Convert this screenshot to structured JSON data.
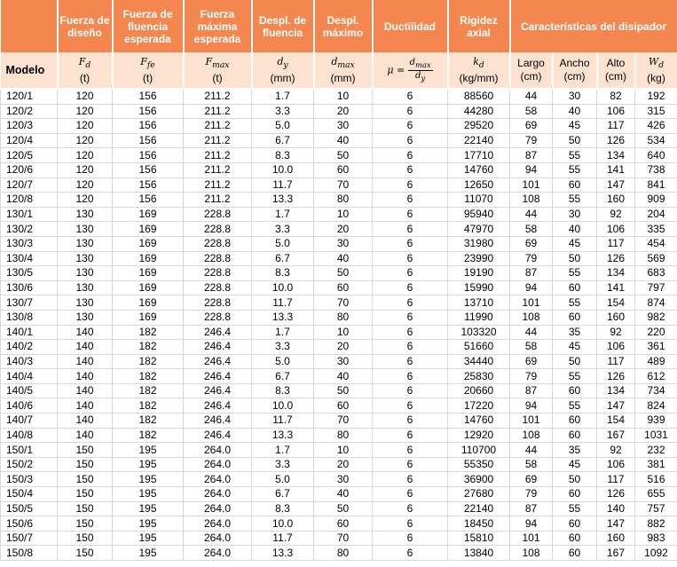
{
  "headers": {
    "fd": "Fuerza de diseño",
    "ffe": "Fuerza de fluencia esperada",
    "fmax": "Fuerza máxima esperada",
    "dy": "Despl. de fluencia",
    "dmax": "Despl. máximo",
    "ductilidad": "Ductilidad",
    "rigidez": "Rigidez axial",
    "caracteristicas": "Características del disipador"
  },
  "subheaders": {
    "modelo": "Modelo",
    "fd_sym": "F",
    "fd_sub": "d",
    "fd_unit": "(t)",
    "ffe_sym": "F",
    "ffe_sub": "fe",
    "ffe_unit": "(t)",
    "fmax_sym": "F",
    "fmax_sub": "max",
    "fmax_unit": "(t)",
    "dy_sym": "d",
    "dy_sub": "y",
    "dy_unit": "(mm)",
    "dmax_sym": "d",
    "dmax_sub": "max",
    "dmax_unit": "(mm)",
    "mu": "μ =",
    "mu_num": "d",
    "mu_num_sub": "max",
    "mu_den": "d",
    "mu_den_sub": "y",
    "kd_sym": "k",
    "kd_sub": "d",
    "kd_unit": "(kg/mm)",
    "largo": "Largo",
    "largo_unit": "(cm)",
    "ancho": "Ancho",
    "ancho_unit": "(cm)",
    "alto": "Alto",
    "alto_unit": "(cm)",
    "wd_sym": "W",
    "wd_sub": "d",
    "wd_unit": "(kg)"
  },
  "rows": [
    [
      "120/1",
      "120",
      "156",
      "211.2",
      "1.7",
      "10",
      "6",
      "88560",
      "44",
      "30",
      "82",
      "192"
    ],
    [
      "120/2",
      "120",
      "156",
      "211.2",
      "3.3",
      "20",
      "6",
      "44280",
      "58",
      "40",
      "106",
      "315"
    ],
    [
      "120/3",
      "120",
      "156",
      "211.2",
      "5.0",
      "30",
      "6",
      "29520",
      "69",
      "45",
      "117",
      "426"
    ],
    [
      "120/4",
      "120",
      "156",
      "211.2",
      "6.7",
      "40",
      "6",
      "22140",
      "79",
      "50",
      "126",
      "534"
    ],
    [
      "120/5",
      "120",
      "156",
      "211.2",
      "8.3",
      "50",
      "6",
      "17710",
      "87",
      "55",
      "134",
      "640"
    ],
    [
      "120/6",
      "120",
      "156",
      "211.2",
      "10.0",
      "60",
      "6",
      "14760",
      "94",
      "55",
      "141",
      "738"
    ],
    [
      "120/7",
      "120",
      "156",
      "211.2",
      "11.7",
      "70",
      "6",
      "12650",
      "101",
      "60",
      "147",
      "841"
    ],
    [
      "120/8",
      "120",
      "156",
      "211.2",
      "13.3",
      "80",
      "6",
      "11070",
      "108",
      "55",
      "160",
      "909"
    ],
    [
      "130/1",
      "130",
      "169",
      "228.8",
      "1.7",
      "10",
      "6",
      "95940",
      "44",
      "30",
      "92",
      "204"
    ],
    [
      "130/2",
      "130",
      "169",
      "228.8",
      "3.3",
      "20",
      "6",
      "47970",
      "58",
      "40",
      "106",
      "335"
    ],
    [
      "130/3",
      "130",
      "169",
      "228.8",
      "5.0",
      "30",
      "6",
      "31980",
      "69",
      "45",
      "117",
      "454"
    ],
    [
      "130/4",
      "130",
      "169",
      "228.8",
      "6.7",
      "40",
      "6",
      "23990",
      "79",
      "50",
      "126",
      "569"
    ],
    [
      "130/5",
      "130",
      "169",
      "228.8",
      "8.3",
      "50",
      "6",
      "19190",
      "87",
      "55",
      "134",
      "683"
    ],
    [
      "130/6",
      "130",
      "169",
      "228.8",
      "10.0",
      "60",
      "6",
      "15990",
      "94",
      "60",
      "141",
      "797"
    ],
    [
      "130/7",
      "130",
      "169",
      "228.8",
      "11.7",
      "70",
      "6",
      "13710",
      "101",
      "55",
      "154",
      "874"
    ],
    [
      "130/8",
      "130",
      "169",
      "228.8",
      "13.3",
      "80",
      "6",
      "11990",
      "108",
      "60",
      "160",
      "982"
    ],
    [
      "140/1",
      "140",
      "182",
      "246.4",
      "1.7",
      "10",
      "6",
      "103320",
      "44",
      "35",
      "92",
      "220"
    ],
    [
      "140/2",
      "140",
      "182",
      "246.4",
      "3.3",
      "20",
      "6",
      "51660",
      "58",
      "45",
      "106",
      "361"
    ],
    [
      "140/3",
      "140",
      "182",
      "246.4",
      "5.0",
      "30",
      "6",
      "34440",
      "69",
      "50",
      "117",
      "489"
    ],
    [
      "140/4",
      "140",
      "182",
      "246.4",
      "6.7",
      "40",
      "6",
      "25830",
      "79",
      "55",
      "126",
      "612"
    ],
    [
      "140/5",
      "140",
      "182",
      "246.4",
      "8.3",
      "50",
      "6",
      "20660",
      "87",
      "60",
      "134",
      "734"
    ],
    [
      "140/6",
      "140",
      "182",
      "246.4",
      "10.0",
      "60",
      "6",
      "17220",
      "94",
      "55",
      "147",
      "824"
    ],
    [
      "140/7",
      "140",
      "182",
      "246.4",
      "11.7",
      "70",
      "6",
      "14760",
      "101",
      "60",
      "154",
      "939"
    ],
    [
      "140/8",
      "140",
      "182",
      "246.4",
      "13.3",
      "80",
      "6",
      "12920",
      "108",
      "60",
      "167",
      "1031"
    ],
    [
      "150/1",
      "150",
      "195",
      "264.0",
      "1.7",
      "10",
      "6",
      "110700",
      "44",
      "35",
      "92",
      "232"
    ],
    [
      "150/2",
      "150",
      "195",
      "264.0",
      "3.3",
      "20",
      "6",
      "55350",
      "58",
      "45",
      "106",
      "381"
    ],
    [
      "150/3",
      "150",
      "195",
      "264.0",
      "5.0",
      "30",
      "6",
      "36900",
      "69",
      "50",
      "117",
      "516"
    ],
    [
      "150/4",
      "150",
      "195",
      "264.0",
      "6.7",
      "40",
      "6",
      "27680",
      "79",
      "60",
      "126",
      "655"
    ],
    [
      "150/5",
      "150",
      "195",
      "264.0",
      "8.3",
      "50",
      "6",
      "22140",
      "87",
      "55",
      "140",
      "757"
    ],
    [
      "150/6",
      "150",
      "195",
      "264.0",
      "10.0",
      "60",
      "6",
      "18450",
      "94",
      "60",
      "147",
      "882"
    ],
    [
      "150/7",
      "150",
      "195",
      "264.0",
      "11.7",
      "70",
      "6",
      "15810",
      "101",
      "60",
      "160",
      "983"
    ],
    [
      "150/8",
      "150",
      "195",
      "264.0",
      "13.3",
      "80",
      "6",
      "13840",
      "108",
      "60",
      "167",
      "1092"
    ]
  ]
}
